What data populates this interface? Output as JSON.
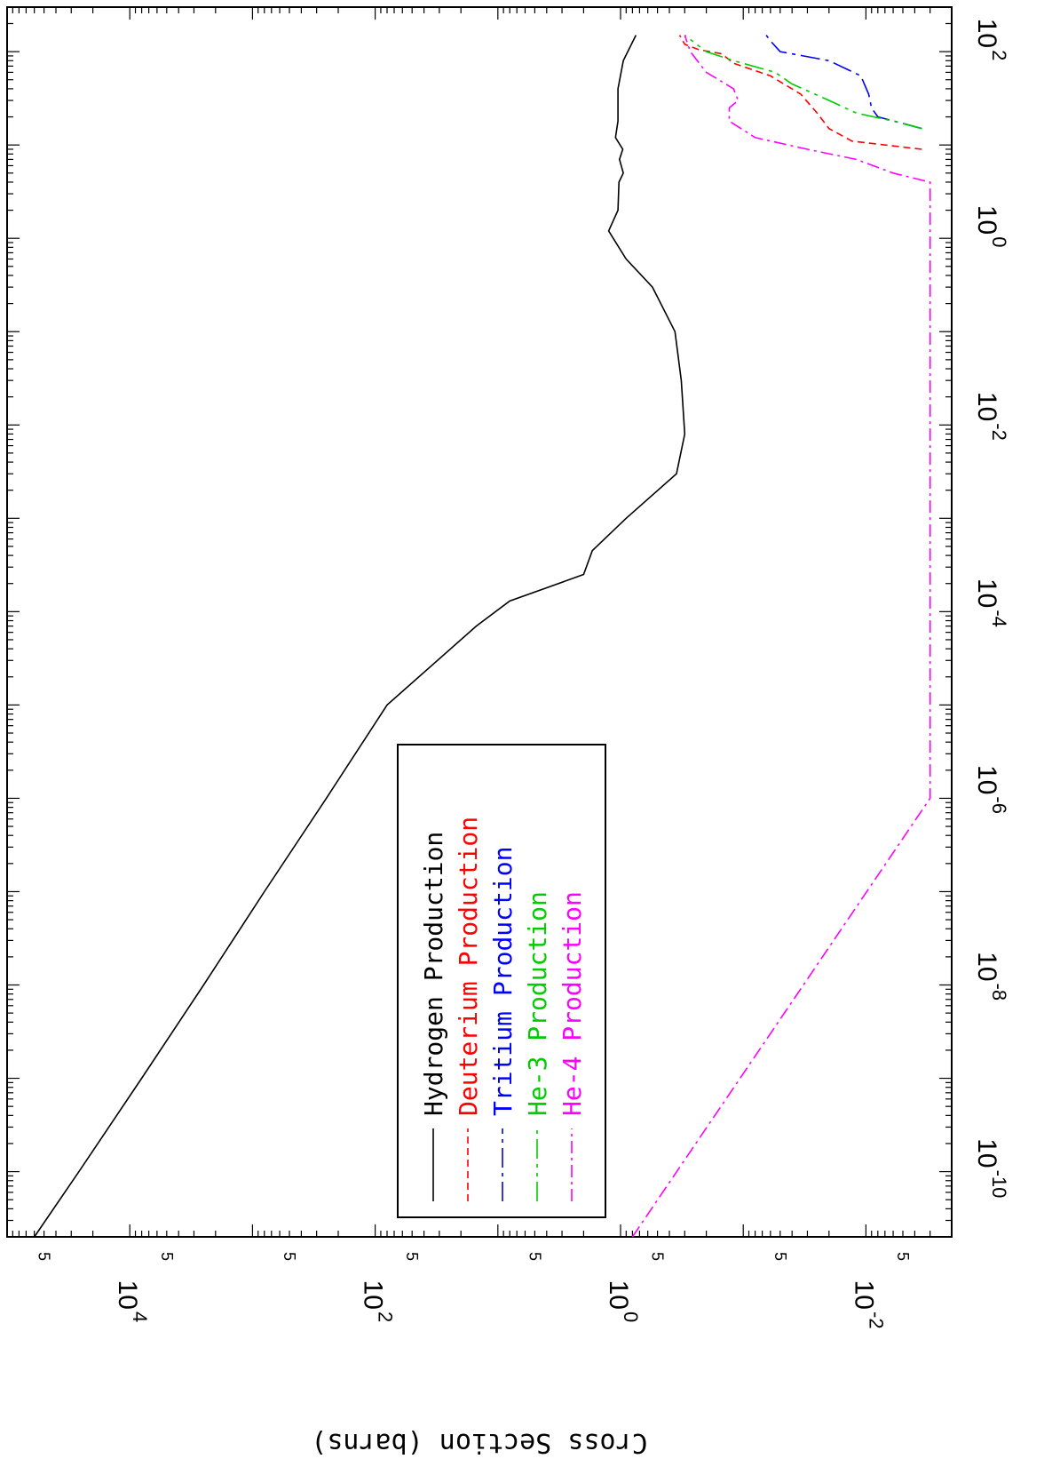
{
  "chart_data": {
    "type": "line",
    "orientation": "rotated-90-clockwise",
    "title": "",
    "xlabel": "",
    "ylabel": "Cross Section (barns)",
    "x_scale": "log",
    "y_scale": "log",
    "xlim": [
      2e-11,
      300
    ],
    "ylim": [
      0.002,
      100000
    ],
    "x_ticks": [
      {
        "value": 1e-10,
        "base": "10",
        "exp": "-10"
      },
      {
        "value": 1e-08,
        "base": "10",
        "exp": "-8"
      },
      {
        "value": 1e-06,
        "base": "10",
        "exp": "-6"
      },
      {
        "value": 0.0001,
        "base": "10",
        "exp": "-4"
      },
      {
        "value": 0.01,
        "base": "10",
        "exp": "-2"
      },
      {
        "value": 1,
        "base": "10",
        "exp": "0"
      },
      {
        "value": 100,
        "base": "10",
        "exp": "2"
      }
    ],
    "y_ticks": [
      {
        "value": 0.01,
        "base": "10",
        "exp": "-2"
      },
      {
        "value": 1,
        "base": "10",
        "exp": "0"
      },
      {
        "value": 100,
        "base": "10",
        "exp": "2"
      },
      {
        "value": 10000,
        "base": "10",
        "exp": "4"
      }
    ],
    "y_minor_five_label": "5",
    "grid": false,
    "legend_position": "bottom-left",
    "series": [
      {
        "name": "Hydrogen Production",
        "color": "#000000",
        "dash": "solid",
        "x": [
          2e-11,
          1e-10,
          1e-09,
          1e-08,
          1e-07,
          1e-06,
          1e-05,
          7e-05,
          0.00013,
          0.00018,
          0.00025,
          0.00045,
          0.001,
          0.003,
          0.008,
          0.03,
          0.1,
          0.3,
          0.6,
          1.2,
          2,
          4,
          5,
          7,
          9,
          12,
          18,
          40,
          80,
          150
        ],
        "y": [
          60000,
          26000,
          8000,
          2500,
          800,
          250,
          80,
          15,
          8,
          4,
          2,
          1.7,
          0.9,
          0.35,
          0.3,
          0.32,
          0.36,
          0.55,
          0.9,
          1.25,
          1.05,
          1.03,
          0.95,
          1.02,
          0.96,
          1.1,
          1.05,
          1.05,
          0.95,
          0.75
        ]
      },
      {
        "name": "Deuterium Production",
        "color": "#ff0000",
        "dash": "8,5",
        "x": [
          9,
          11,
          15,
          22,
          35,
          55,
          75,
          95,
          105,
          120,
          150
        ],
        "y": [
          0.0035,
          0.013,
          0.02,
          0.025,
          0.034,
          0.06,
          0.12,
          0.15,
          0.23,
          0.3,
          0.33
        ]
      },
      {
        "name": "Tritium Production",
        "color": "#0000ff",
        "dash": "22,6,4,6",
        "x": [
          15,
          17,
          20,
          25,
          35,
          55,
          80,
          100,
          130,
          150
        ],
        "y": [
          0.0035,
          0.005,
          0.008,
          0.009,
          0.0095,
          0.011,
          0.02,
          0.05,
          0.06,
          0.065
        ]
      },
      {
        "name": "He-3 Production",
        "color": "#00cc00",
        "dash": "22,6,4,6,4,6",
        "x": [
          15,
          18,
          22,
          30,
          45,
          60,
          80,
          100,
          150
        ],
        "y": [
          0.0035,
          0.006,
          0.012,
          0.02,
          0.04,
          0.055,
          0.12,
          0.2,
          0.3
        ]
      },
      {
        "name": "He-4 Production",
        "color": "#ff00ff",
        "dash": "14,5,3,5",
        "x": [
          2e-11,
          1e-06,
          4,
          5,
          7,
          9,
          12,
          18,
          25,
          30,
          40,
          60,
          100,
          150
        ],
        "y": [
          0.8,
          0.003,
          0.003,
          0.006,
          0.012,
          0.03,
          0.08,
          0.13,
          0.13,
          0.11,
          0.12,
          0.2,
          0.27,
          0.3
        ]
      }
    ]
  }
}
